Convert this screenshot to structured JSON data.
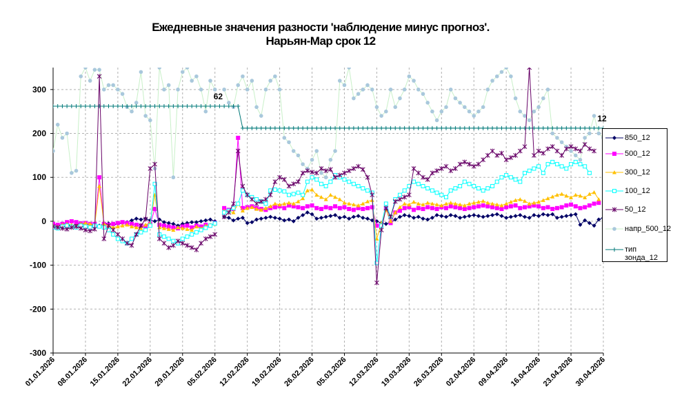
{
  "chart_data": {
    "type": "line",
    "title": "Ежедневные значения разности 'наблюдение минус прогноз'.",
    "subtitle": "Нарьян-Мар      срок 12",
    "ylim": [
      -300,
      350
    ],
    "yticks": [
      -300,
      -200,
      -100,
      0,
      100,
      200,
      300
    ],
    "xlim": [
      0,
      119
    ],
    "grid": true,
    "legend_position": "right",
    "xtick_labels": [
      "01.01.2026",
      "08.01.2026",
      "15.01.2026",
      "22.01.2026",
      "29.01.2026",
      "05.02.2026",
      "12.02.2026",
      "19.02.2026",
      "26.02.2026",
      "05.03.2026",
      "12.03.2026",
      "19.03.2026",
      "26.03.2026",
      "02.04.2026",
      "09.04.2026",
      "16.04.2026",
      "23.04.2026",
      "30.04.2026"
    ],
    "xtick_positions": [
      0,
      7,
      14,
      21,
      28,
      35,
      42,
      49,
      56,
      63,
      70,
      77,
      84,
      91,
      98,
      105,
      112,
      119
    ],
    "annotations": [
      {
        "text": "62",
        "x": 36,
        "y": 262
      },
      {
        "text": "12",
        "x": 119,
        "y": 212
      }
    ],
    "series": [
      {
        "name": "850_12",
        "color": "#000066",
        "marker": "diamond",
        "values": [
          -5,
          -10,
          -8,
          -5,
          -12,
          -6,
          -4,
          -8,
          -6,
          -12,
          -10,
          -6,
          -5,
          -8,
          -6,
          -4,
          -2,
          2,
          6,
          4,
          6,
          2,
          0,
          4,
          -2,
          -4,
          -6,
          -10,
          -6,
          -4,
          -2,
          -2,
          0,
          2,
          4,
          0,
          null,
          10,
          8,
          2,
          6,
          8,
          -4,
          -2,
          4,
          6,
          8,
          10,
          8,
          6,
          2,
          4,
          0,
          8,
          14,
          20,
          16,
          6,
          8,
          10,
          12,
          14,
          8,
          10,
          6,
          10,
          12,
          8,
          6,
          2,
          0,
          -4,
          -6,
          -2,
          4,
          10,
          14,
          12,
          8,
          10,
          6,
          4,
          8,
          14,
          12,
          10,
          14,
          12,
          8,
          10,
          12,
          14,
          12,
          10,
          12,
          14,
          16,
          12,
          8,
          10,
          12,
          14,
          10,
          8,
          14,
          12,
          16,
          14,
          16,
          8,
          10,
          12,
          14,
          16,
          -8,
          2,
          -4,
          -10,
          4,
          8,
          6
        ]
      },
      {
        "name": "500_12",
        "color": "#FF00FF",
        "marker": "square",
        "values": [
          -6,
          -8,
          -6,
          -2,
          0,
          -2,
          -5,
          -4,
          -6,
          -6,
          100,
          -6,
          -8,
          -6,
          -4,
          -2,
          -4,
          -6,
          -8,
          -10,
          -12,
          -6,
          28,
          -8,
          -10,
          -12,
          -14,
          -16,
          -12,
          -10,
          -14,
          -10,
          -12,
          -8,
          -10,
          -4,
          null,
          30,
          26,
          28,
          190,
          30,
          32,
          34,
          30,
          28,
          26,
          30,
          32,
          34,
          30,
          36,
          34,
          32,
          30,
          34,
          36,
          30,
          28,
          32,
          30,
          34,
          30,
          32,
          28,
          26,
          30,
          28,
          30,
          32,
          -10,
          -8,
          28,
          -4,
          20,
          24,
          30,
          32,
          26,
          30,
          28,
          32,
          30,
          28,
          32,
          30,
          34,
          32,
          30,
          28,
          30,
          32,
          34,
          36,
          34,
          32,
          30,
          28,
          32,
          34,
          36,
          30,
          32,
          34,
          36,
          34,
          30,
          32,
          28,
          30,
          32,
          36,
          38,
          34,
          30,
          32,
          36,
          40,
          42
        ]
      },
      {
        "name": "300_12",
        "color": "#FFC000",
        "marker": "triangle",
        "values": [
          -10,
          -12,
          -8,
          -6,
          -8,
          -10,
          -6,
          -4,
          -6,
          -8,
          80,
          -6,
          -10,
          -14,
          -12,
          -10,
          -8,
          -12,
          -14,
          -16,
          -8,
          -4,
          60,
          -14,
          -16,
          -18,
          -20,
          -14,
          -16,
          -18,
          -20,
          -12,
          -16,
          -10,
          -8,
          -6,
          null,
          24,
          22,
          20,
          40,
          24,
          30,
          32,
          28,
          26,
          30,
          34,
          40,
          38,
          40,
          42,
          40,
          45,
          52,
          70,
          72,
          60,
          55,
          50,
          60,
          55,
          50,
          42,
          40,
          38,
          36,
          40,
          45,
          48,
          -40,
          -4,
          26,
          0,
          20,
          32,
          40,
          38,
          44,
          40,
          38,
          42,
          40,
          38,
          36,
          40,
          42,
          40,
          38,
          36,
          40,
          42,
          44,
          46,
          42,
          40,
          38,
          36,
          40,
          44,
          48,
          50,
          46,
          40,
          42,
          44,
          48,
          52,
          56,
          60,
          62,
          58,
          54,
          60,
          58,
          54,
          62,
          66,
          50
        ]
      },
      {
        "name": "100_12",
        "color": "#00FFFF",
        "marker": "square-open",
        "values": [
          -14,
          -16,
          -12,
          -10,
          -12,
          -14,
          -10,
          -12,
          -14,
          -10,
          -12,
          -14,
          -20,
          -30,
          -40,
          -45,
          -50,
          -40,
          -30,
          -25,
          -20,
          -10,
          85,
          -30,
          -35,
          -40,
          -45,
          -50,
          -40,
          -35,
          -30,
          -25,
          -20,
          -15,
          -10,
          -5,
          null,
          20,
          24,
          30,
          40,
          70,
          60,
          55,
          50,
          45,
          40,
          70,
          72,
          70,
          68,
          60,
          62,
          65,
          60,
          90,
          100,
          95,
          85,
          80,
          90,
          105,
          100,
          95,
          90,
          85,
          80,
          75,
          70,
          65,
          -95,
          -10,
          40,
          10,
          50,
          60,
          70,
          80,
          90,
          85,
          80,
          75,
          70,
          65,
          60,
          55,
          70,
          75,
          80,
          90,
          85,
          80,
          75,
          70,
          75,
          80,
          90,
          100,
          105,
          100,
          95,
          90,
          110,
          115,
          120,
          125,
          110,
          130,
          135,
          130,
          125,
          120,
          130,
          135,
          130,
          125,
          110
        ]
      },
      {
        "name": "50_12",
        "color": "#660066",
        "marker": "x",
        "values": [
          -12,
          -14,
          -16,
          -18,
          -14,
          -12,
          -16,
          -20,
          -22,
          -18,
          330,
          -40,
          -10,
          -20,
          -30,
          -40,
          -50,
          -55,
          -30,
          -10,
          5,
          120,
          130,
          -40,
          -50,
          -60,
          -55,
          -45,
          -50,
          -55,
          -60,
          -65,
          -50,
          -40,
          -35,
          -30,
          null,
          10,
          20,
          40,
          160,
          80,
          60,
          50,
          40,
          45,
          50,
          60,
          90,
          100,
          95,
          80,
          85,
          90,
          110,
          115,
          112,
          110,
          120,
          115,
          118,
          100,
          105,
          110,
          115,
          120,
          125,
          118,
          100,
          60,
          -140,
          -20,
          30,
          10,
          45,
          50,
          55,
          60,
          120,
          110,
          100,
          95,
          110,
          115,
          120,
          125,
          115,
          120,
          130,
          135,
          130,
          125,
          130,
          140,
          150,
          160,
          150,
          155,
          140,
          145,
          150,
          160,
          170,
          350,
          150,
          160,
          155,
          165,
          170,
          160,
          150,
          165,
          170,
          165,
          160,
          175,
          165,
          160
        ]
      },
      {
        "name": "напр_500_12",
        "color": "#A9C8DC",
        "marker": "circle",
        "values": [
          160,
          220,
          190,
          200,
          110,
          115,
          330,
          350,
          320,
          345,
          345,
          300,
          310,
          310,
          300,
          290,
          260,
          250,
          270,
          340,
          240,
          230,
          120,
          350,
          300,
          310,
          100,
          300,
          340,
          350,
          320,
          330,
          300,
          250,
          320,
          300,
          null,
          300,
          270,
          260,
          310,
          330,
          300,
          320,
          260,
          240,
          300,
          320,
          330,
          300,
          190,
          180,
          160,
          150,
          130,
          120,
          140,
          160,
          110,
          100,
          140,
          160,
          320,
          310,
          350,
          280,
          290,
          300,
          310,
          300,
          260,
          240,
          250,
          300,
          260,
          280,
          300,
          330,
          320,
          300,
          290,
          270,
          250,
          230,
          250,
          260,
          300,
          280,
          270,
          260,
          250,
          240,
          250,
          260,
          300,
          320,
          330,
          340,
          350,
          330,
          280,
          250,
          240,
          230,
          250,
          260,
          280,
          300,
          200,
          190,
          180,
          170,
          160,
          150,
          140,
          190,
          200,
          240,
          200,
          190
        ]
      },
      {
        "name": "тип\nзонда_12",
        "color": "#007878",
        "marker": "plus",
        "values": [
          262,
          262,
          262,
          262,
          262,
          262,
          262,
          262,
          262,
          262,
          262,
          262,
          262,
          262,
          262,
          262,
          262,
          262,
          262,
          262,
          262,
          262,
          262,
          262,
          262,
          262,
          262,
          262,
          262,
          262,
          262,
          262,
          262,
          262,
          262,
          262,
          262,
          262,
          262,
          262,
          262,
          212,
          212,
          212,
          212,
          212,
          212,
          212,
          212,
          212,
          212,
          212,
          212,
          212,
          212,
          212,
          212,
          212,
          212,
          212,
          212,
          212,
          212,
          212,
          212,
          212,
          212,
          212,
          212,
          212,
          212,
          212,
          212,
          212,
          212,
          212,
          212,
          212,
          212,
          212,
          212,
          212,
          212,
          212,
          212,
          212,
          212,
          212,
          212,
          212,
          212,
          212,
          212,
          212,
          212,
          212,
          212,
          212,
          212,
          212,
          212,
          212,
          212,
          212,
          212,
          212,
          212,
          212,
          212,
          212,
          212,
          212,
          212,
          212,
          212,
          212,
          212,
          212,
          212,
          212
        ]
      }
    ]
  }
}
